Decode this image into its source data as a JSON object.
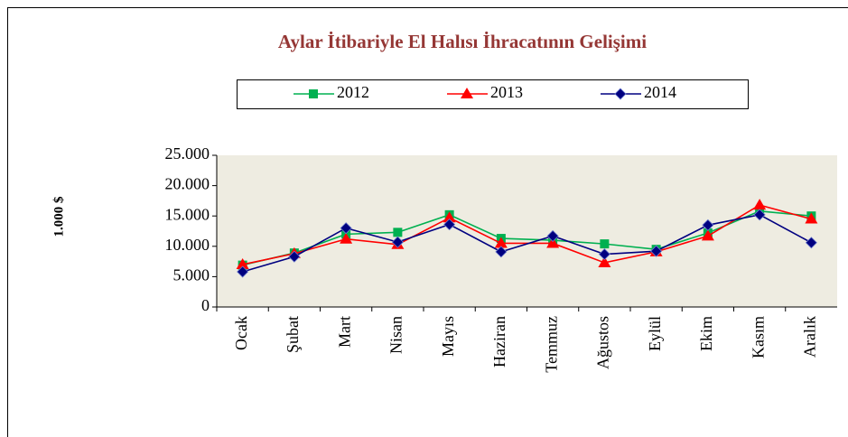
{
  "chart_data": {
    "type": "line",
    "title": "Aylar İtibariyle El Halısı İhracatının Gelişimi",
    "y_label": "1.000 $",
    "categories": [
      "Ocak",
      "Şubat",
      "Mart",
      "Nisan",
      "Mayıs",
      "Haziran",
      "Temmuz",
      "Ağustos",
      "Eylül",
      "Ekim",
      "Kasım",
      "Aralık"
    ],
    "series": [
      {
        "name": "2012",
        "color": "#00b050",
        "marker": "square",
        "values": [
          6900,
          8900,
          12000,
          12300,
          15200,
          11300,
          11000,
          10400,
          9500,
          12200,
          15800,
          15000
        ]
      },
      {
        "name": "2013",
        "color": "#ff0000",
        "marker": "triangle",
        "values": [
          7000,
          8800,
          11200,
          10300,
          14700,
          10500,
          10500,
          7300,
          9100,
          11700,
          16800,
          14500
        ]
      },
      {
        "name": "2014",
        "color": "#000080",
        "marker": "diamond",
        "values": [
          5800,
          8300,
          13000,
          10700,
          13600,
          9100,
          11700,
          8700,
          9200,
          13500,
          15200,
          10600
        ]
      }
    ],
    "ylim": [
      0,
      25000
    ],
    "yticks": [
      0,
      {
        "value": 5000,
        "label": "5.000"
      },
      {
        "value": 10000,
        "label": "10.000"
      },
      {
        "value": 15000,
        "label": "15.000"
      },
      {
        "value": 20000,
        "label": "20.000"
      },
      {
        "value": 25000,
        "label": "25.000"
      }
    ],
    "plot_background": "#eeece1",
    "legend": "top"
  }
}
